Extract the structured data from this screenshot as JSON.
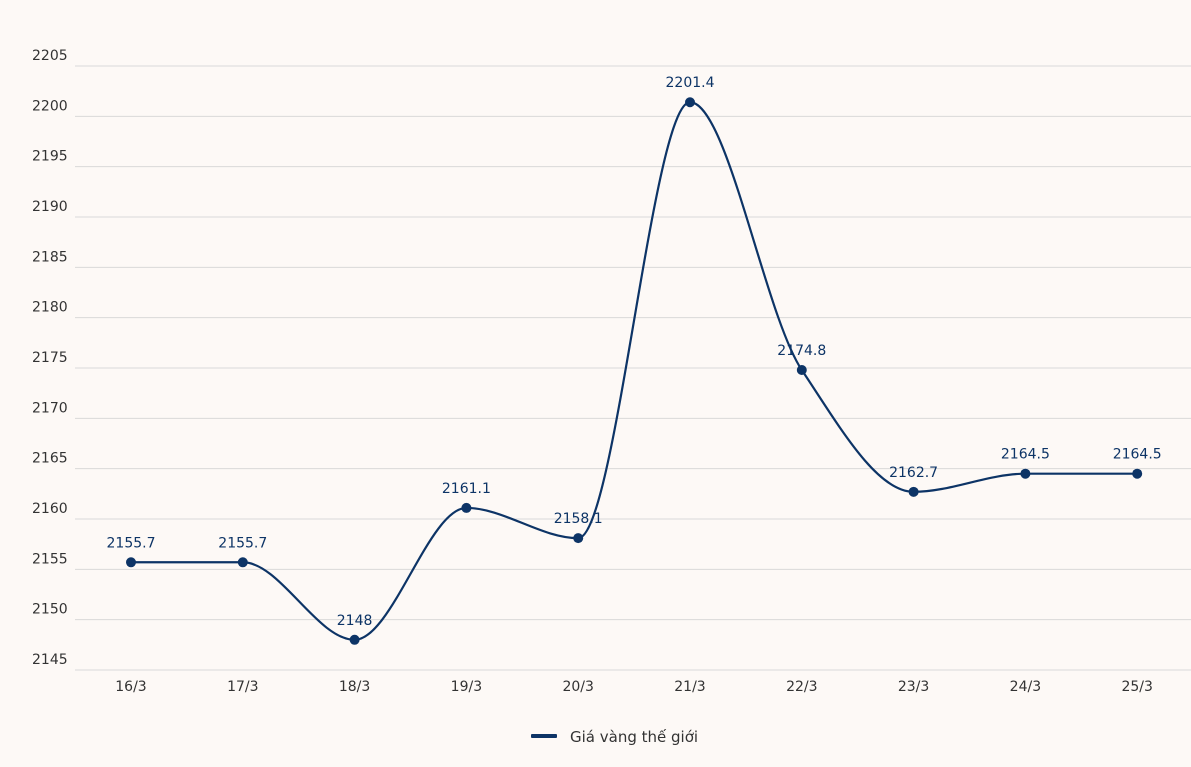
{
  "chart_data": {
    "type": "line",
    "title": "",
    "xlabel": "",
    "ylabel": "",
    "categories": [
      "16/3",
      "17/3",
      "18/3",
      "19/3",
      "20/3",
      "21/3",
      "22/3",
      "23/3",
      "24/3",
      "25/3"
    ],
    "series": [
      {
        "name": "Giá vàng thế giới",
        "values": [
          2155.7,
          2155.7,
          2148,
          2161.1,
          2158.1,
          2201.4,
          2174.8,
          2162.7,
          2164.5,
          2164.5
        ],
        "data_labels": [
          "2155.7",
          "2155.7",
          "2148",
          "2161.1",
          "2158.1",
          "2201.4",
          "2174.8",
          "2162.7",
          "2164.5",
          "2164.5"
        ],
        "color": "#0d3466"
      }
    ],
    "ylim": [
      2145,
      2205
    ],
    "yticks": [
      "2145",
      "2150",
      "2155",
      "2160",
      "2165",
      "2170",
      "2175",
      "2180",
      "2185",
      "2190",
      "2195",
      "2200",
      "2205"
    ],
    "grid": true,
    "legend_position": "bottom-center"
  },
  "colors": {
    "background": "#fdf9f6",
    "series": "#0d3466",
    "grid": "#d9d9d9",
    "text": "#333333"
  }
}
